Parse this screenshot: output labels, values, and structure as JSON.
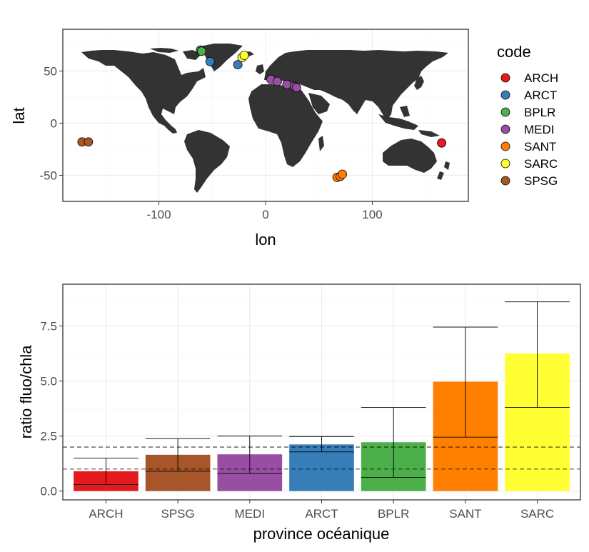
{
  "chart_data": [
    {
      "type": "scatter",
      "xlabel": "lon",
      "ylabel": "lat",
      "xlim": [
        -190,
        190
      ],
      "ylim": [
        -75,
        90
      ],
      "x_ticks": [
        -100,
        0,
        100
      ],
      "x_tick_labels": [
        "-100",
        "0",
        "100"
      ],
      "y_ticks": [
        -50,
        0,
        50
      ],
      "y_tick_labels": [
        "-50",
        "0",
        "50"
      ],
      "grid": true,
      "background_layer": "world land map",
      "legend": {
        "title": "code",
        "position": "right",
        "entries": [
          "ARCH",
          "ARCT",
          "BPLR",
          "MEDI",
          "SANT",
          "SARC",
          "SPSG"
        ]
      },
      "colors": {
        "ARCH": "#E41A1C",
        "ARCT": "#377EB8",
        "BPLR": "#4DAF4A",
        "MEDI": "#984EA3",
        "SANT": "#FF7F00",
        "SARC": "#FFFF33",
        "SPSG": "#A65628"
      },
      "points": [
        {
          "code": "ARCH",
          "lon": 165,
          "lat": -19
        },
        {
          "code": "ARCT",
          "lon": -52,
          "lat": 59
        },
        {
          "code": "ARCT",
          "lon": -26,
          "lat": 56
        },
        {
          "code": "BPLR",
          "lon": -61,
          "lat": 70
        },
        {
          "code": "BPLR",
          "lon": -60,
          "lat": 69
        },
        {
          "code": "MEDI",
          "lon": 5,
          "lat": 42
        },
        {
          "code": "MEDI",
          "lon": 11,
          "lat": 40
        },
        {
          "code": "MEDI",
          "lon": 20,
          "lat": 37
        },
        {
          "code": "MEDI",
          "lon": 27,
          "lat": 35
        },
        {
          "code": "MEDI",
          "lon": 29,
          "lat": 34
        },
        {
          "code": "SANT",
          "lon": 67,
          "lat": -52
        },
        {
          "code": "SANT",
          "lon": 70,
          "lat": -51
        },
        {
          "code": "SANT",
          "lon": 72,
          "lat": -49
        },
        {
          "code": "SARC",
          "lon": -22,
          "lat": 63
        },
        {
          "code": "SARC",
          "lon": -20,
          "lat": 65
        },
        {
          "code": "SPSG",
          "lon": -172,
          "lat": -18
        },
        {
          "code": "SPSG",
          "lon": -166,
          "lat": -18
        }
      ]
    },
    {
      "type": "bar",
      "xlabel": "province océanique",
      "ylabel": "ratio fluo/chla",
      "categories": [
        "ARCH",
        "SPSG",
        "MEDI",
        "ARCT",
        "BPLR",
        "SANT",
        "SARC"
      ],
      "values": [
        0.9,
        1.65,
        1.67,
        2.12,
        2.22,
        4.97,
        6.25
      ],
      "error_high": [
        1.5,
        2.38,
        2.5,
        2.48,
        3.8,
        7.45,
        8.6
      ],
      "error_low": [
        0.3,
        0.9,
        0.8,
        1.78,
        0.62,
        2.45,
        3.8
      ],
      "colors": [
        "#E41A1C",
        "#A65628",
        "#984EA3",
        "#377EB8",
        "#4DAF4A",
        "#FF7F00",
        "#FFFF33"
      ],
      "ylim": [
        -0.4,
        9.4
      ],
      "y_ticks": [
        0,
        2.5,
        5,
        7.5
      ],
      "y_tick_labels": [
        "0.0",
        "2.5",
        "5.0",
        "7.5"
      ],
      "reference_lines": [
        1,
        2
      ],
      "grid": true,
      "legend": "none"
    }
  ]
}
